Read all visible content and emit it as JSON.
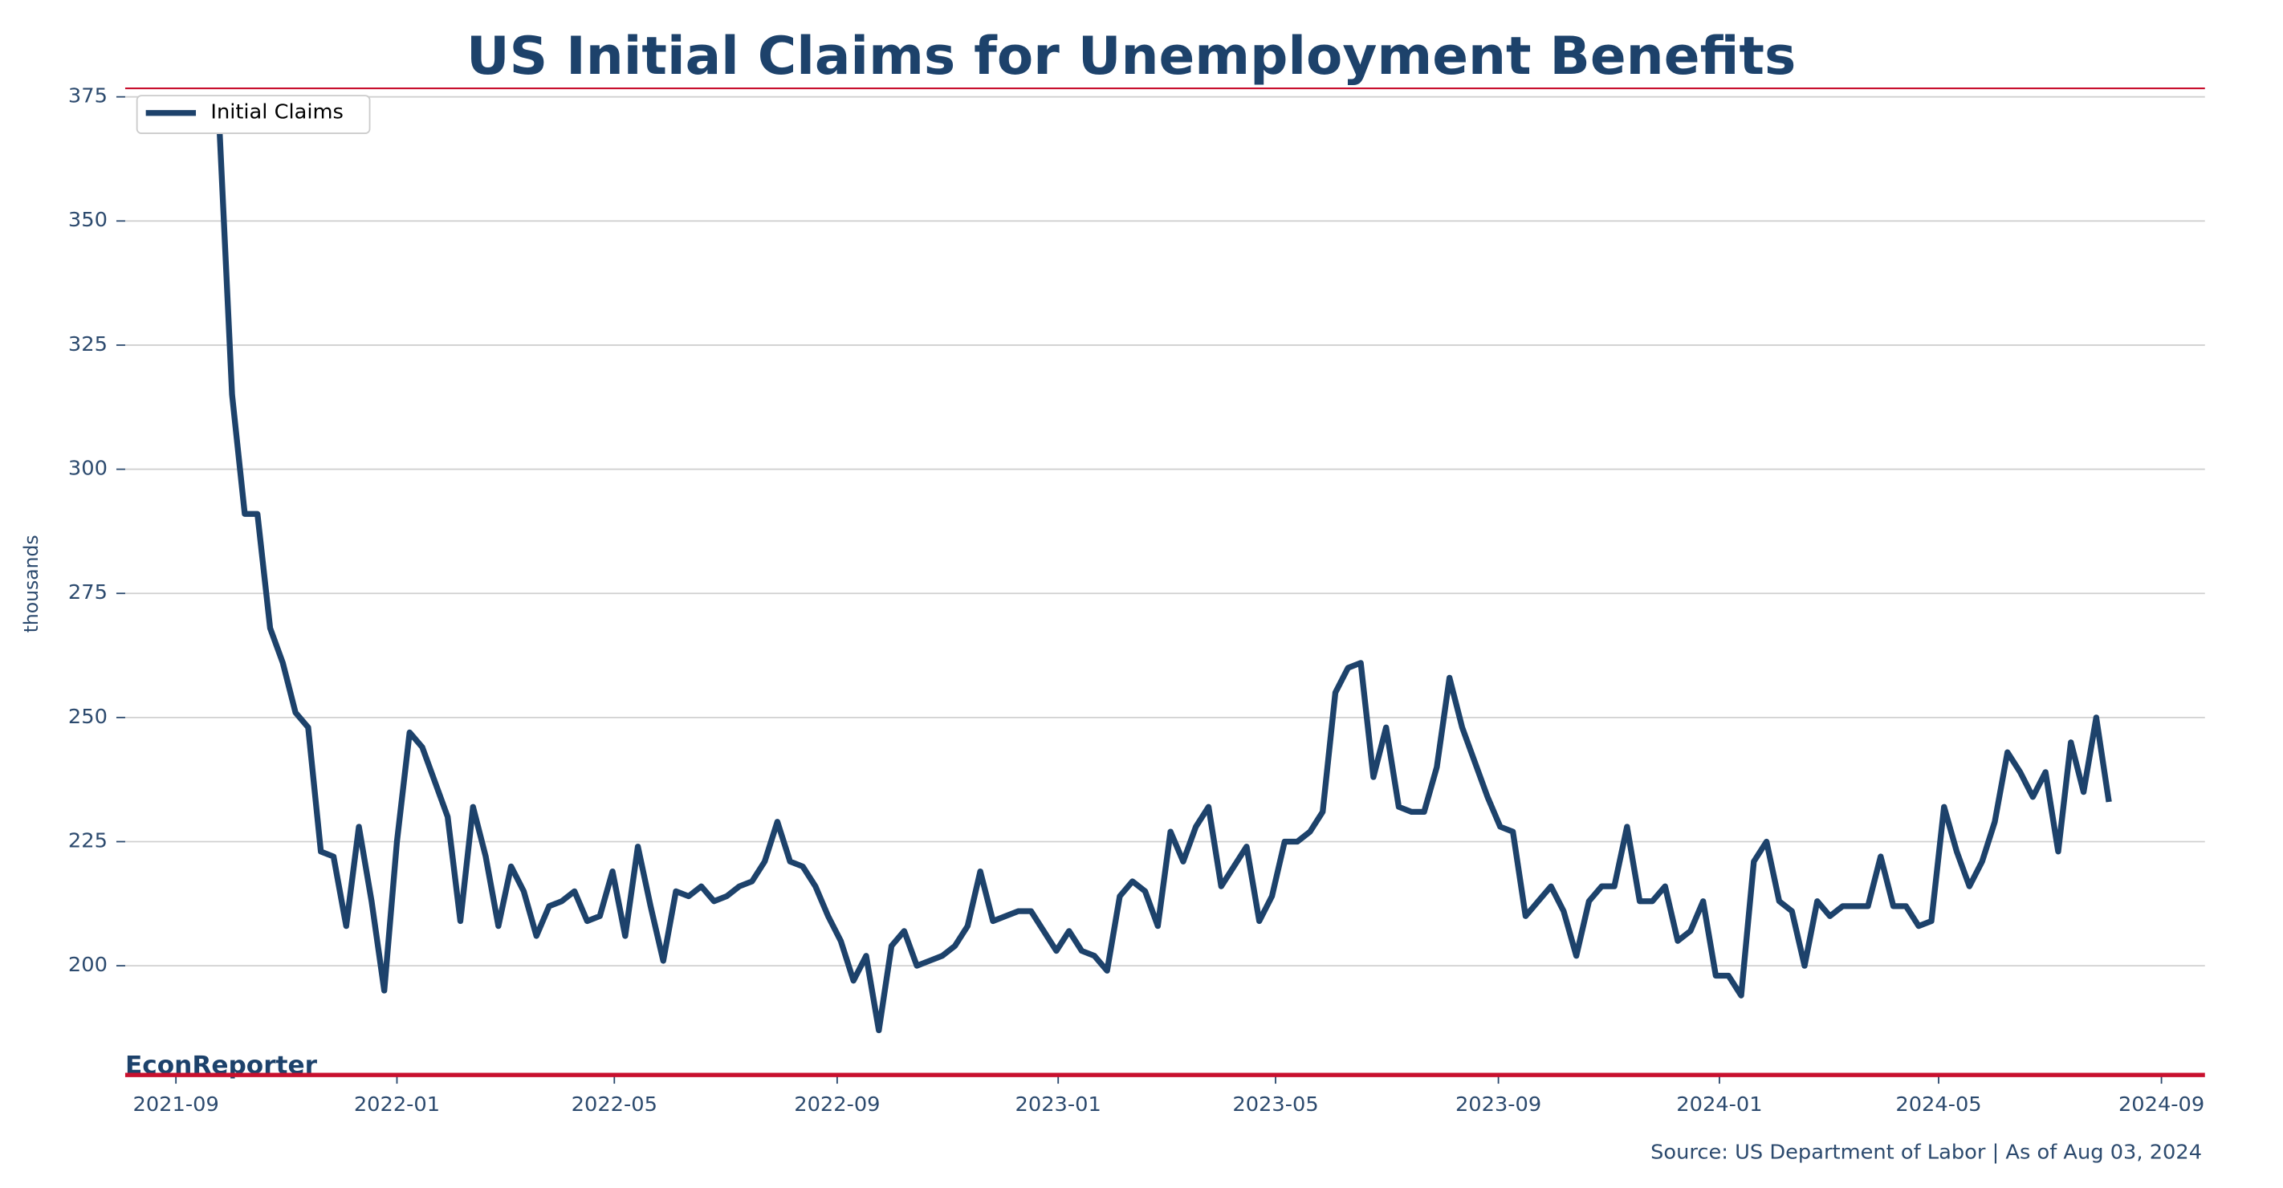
{
  "chart_data": {
    "type": "line",
    "title": "US Initial Claims for Unemployment Benefits",
    "y_label": "thousands",
    "brand": "EconReporter",
    "source": "Source: US Department of Labor | As of Aug 03, 2024",
    "legend": "upper left",
    "grid": true,
    "xlim": [
      "2021-08-04",
      "2024-09-25"
    ],
    "xticks": [
      "2021-09",
      "2022-01",
      "2022-05",
      "2022-09",
      "2023-01",
      "2023-05",
      "2023-09",
      "2024-01",
      "2024-05",
      "2024-09"
    ],
    "ylim": [
      178,
      377
    ],
    "yticks": [
      200,
      225,
      250,
      275,
      300,
      325,
      350,
      375
    ],
    "x": [
      "2021-09-25",
      "2021-10-02",
      "2021-10-09",
      "2021-10-16",
      "2021-10-23",
      "2021-10-30",
      "2021-11-06",
      "2021-11-13",
      "2021-11-20",
      "2021-11-27",
      "2021-12-04",
      "2021-12-11",
      "2021-12-18",
      "2021-12-25",
      "2022-01-01",
      "2022-01-08",
      "2022-01-15",
      "2022-01-22",
      "2022-01-29",
      "2022-02-05",
      "2022-02-12",
      "2022-02-19",
      "2022-02-26",
      "2022-03-05",
      "2022-03-12",
      "2022-03-19",
      "2022-03-26",
      "2022-04-02",
      "2022-04-09",
      "2022-04-16",
      "2022-04-23",
      "2022-04-30",
      "2022-05-07",
      "2022-05-14",
      "2022-05-21",
      "2022-05-28",
      "2022-06-04",
      "2022-06-11",
      "2022-06-18",
      "2022-06-25",
      "2022-07-02",
      "2022-07-09",
      "2022-07-16",
      "2022-07-23",
      "2022-07-30",
      "2022-08-06",
      "2022-08-13",
      "2022-08-20",
      "2022-08-27",
      "2022-09-03",
      "2022-09-10",
      "2022-09-17",
      "2022-09-24",
      "2022-10-01",
      "2022-10-08",
      "2022-10-15",
      "2022-10-22",
      "2022-10-29",
      "2022-11-05",
      "2022-11-12",
      "2022-11-19",
      "2022-11-26",
      "2022-12-03",
      "2022-12-10",
      "2022-12-17",
      "2022-12-24",
      "2022-12-31",
      "2023-01-07",
      "2023-01-14",
      "2023-01-21",
      "2023-01-28",
      "2023-02-04",
      "2023-02-11",
      "2023-02-18",
      "2023-02-25",
      "2023-03-04",
      "2023-03-11",
      "2023-03-18",
      "2023-03-25",
      "2023-04-01",
      "2023-04-08",
      "2023-04-15",
      "2023-04-22",
      "2023-04-29",
      "2023-05-06",
      "2023-05-13",
      "2023-05-20",
      "2023-05-27",
      "2023-06-03",
      "2023-06-10",
      "2023-06-17",
      "2023-06-24",
      "2023-07-01",
      "2023-07-08",
      "2023-07-15",
      "2023-07-22",
      "2023-07-29",
      "2023-08-05",
      "2023-08-12",
      "2023-08-19",
      "2023-08-26",
      "2023-09-02",
      "2023-09-09",
      "2023-09-16",
      "2023-09-23",
      "2023-09-30",
      "2023-10-07",
      "2023-10-14",
      "2023-10-21",
      "2023-10-28",
      "2023-11-04",
      "2023-11-11",
      "2023-11-18",
      "2023-11-25",
      "2023-12-02",
      "2023-12-09",
      "2023-12-16",
      "2023-12-23",
      "2023-12-30",
      "2024-01-06",
      "2024-01-13",
      "2024-01-20",
      "2024-01-27",
      "2024-02-03",
      "2024-02-10",
      "2024-02-17",
      "2024-02-24",
      "2024-03-02",
      "2024-03-09",
      "2024-03-16",
      "2024-03-23",
      "2024-03-30",
      "2024-04-06",
      "2024-04-13",
      "2024-04-20",
      "2024-04-27",
      "2024-05-04",
      "2024-05-11",
      "2024-05-18",
      "2024-05-25",
      "2024-06-01",
      "2024-06-08",
      "2024-06-15",
      "2024-06-22",
      "2024-06-29",
      "2024-07-06",
      "2024-07-13",
      "2024-07-20",
      "2024-07-27",
      "2024-08-03"
    ],
    "series": [
      {
        "name": "Initial Claims",
        "color": "#1d426b",
        "values": [
          369,
          315,
          291,
          291,
          268,
          261,
          251,
          248,
          223,
          222,
          208,
          228,
          213,
          195,
          225,
          247,
          244,
          237,
          230,
          209,
          232,
          222,
          208,
          220,
          215,
          206,
          212,
          213,
          215,
          209,
          210,
          219,
          206,
          224,
          212,
          201,
          215,
          214,
          216,
          213,
          214,
          216,
          217,
          221,
          229,
          221,
          220,
          216,
          210,
          205,
          197,
          202,
          187,
          204,
          207,
          200,
          201,
          202,
          204,
          208,
          219,
          209,
          210,
          211,
          211,
          207,
          203,
          207,
          203,
          202,
          199,
          214,
          217,
          215,
          208,
          227,
          221,
          228,
          232,
          216,
          220,
          224,
          209,
          214,
          225,
          225,
          227,
          231,
          255,
          260,
          261,
          238,
          248,
          232,
          231,
          231,
          240,
          258,
          248,
          241,
          234,
          228,
          227,
          210,
          213,
          216,
          211,
          202,
          213,
          216,
          216,
          228,
          213,
          213,
          216,
          205,
          207,
          213,
          198,
          198,
          194,
          221,
          225,
          213,
          211,
          200,
          213,
          210,
          212,
          212,
          212,
          222,
          212,
          212,
          208,
          209,
          232,
          223,
          216,
          221,
          229,
          243,
          239,
          234,
          239,
          223,
          245,
          235,
          250,
          233
        ]
      }
    ]
  }
}
